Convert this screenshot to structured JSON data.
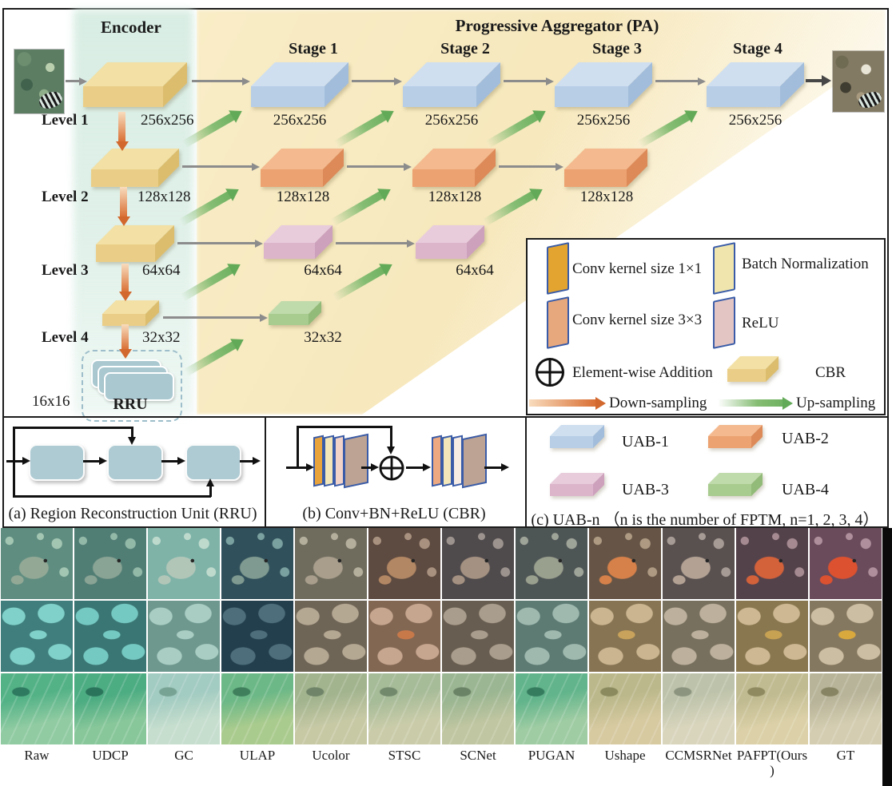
{
  "figure": {
    "encoder_title": "Encoder",
    "pa_title": "Progressive Aggregator (PA)",
    "stage_titles": [
      "Stage 1",
      "Stage 2",
      "Stage 3",
      "Stage 4"
    ],
    "levels": [
      {
        "label": "Level 1",
        "size": "256x256"
      },
      {
        "label": "Level 2",
        "size": "128x128"
      },
      {
        "label": "Level 3",
        "size": "64x64"
      },
      {
        "label": "Level 4",
        "size": "32x32"
      }
    ],
    "rru": {
      "label": "RRU",
      "size": "16x16"
    },
    "pa_rows": [
      {
        "uab": "UAB-1",
        "sizes": [
          "256x256",
          "256x256",
          "256x256",
          "256x256"
        ]
      },
      {
        "uab": "UAB-2",
        "sizes": [
          "128x128",
          "128x128",
          "128x128"
        ]
      },
      {
        "uab": "UAB-3",
        "sizes": [
          "64x64",
          "64x64"
        ]
      },
      {
        "uab": "UAB-4",
        "sizes": [
          "32x32"
        ]
      }
    ]
  },
  "legend": {
    "conv1": "Conv kernel size 1×1",
    "conv3": "Conv kernel size 3×3",
    "bn": "Batch Normalization",
    "relu": "ReLU",
    "add": "Element-wise Addition",
    "cbr": "CBR",
    "down": "Down-sampling",
    "up": "Up-sampling"
  },
  "panels": {
    "a_caption": "(a) Region Reconstruction Unit (RRU)",
    "b_caption": "(b) Conv+BN+ReLU (CBR)",
    "c_caption": "(c) UAB-n （n is the number of FPTM, n=1, 2, 3, 4）",
    "uab_labels": [
      "UAB-1",
      "UAB-2",
      "UAB-3",
      "UAB-4"
    ]
  },
  "colors": {
    "uab1": "#b7cee6",
    "uab2": "#eca271",
    "uab3": "#dcb5cb",
    "uab4": "#a8cb8f",
    "cbr": "#eace88",
    "conv1_plate": "#e3a52f",
    "conv3_plate": "#e7a87d",
    "bn_plate": "#efe5ad",
    "relu_plate": "#e3c6c4",
    "down_arrow": "#d96e33",
    "up_arrow": "#6fb161",
    "flow_arrow": "#8c8c8c",
    "encoder_band": "#d6ece2",
    "pa_band": "#f8ebc3",
    "rru_teal": "#a9c8d0"
  },
  "comparison": {
    "methods": [
      "Raw",
      "UDCP",
      "GC",
      "ULAP",
      "Ucolor",
      "STSC",
      "SCNet",
      "PUGAN",
      "Ushape",
      "CCMSRNet",
      "PAFPT(Ours\n)",
      "GT"
    ],
    "rows": [
      {
        "scene": "fish",
        "cells": [
          [
            "#5f8d80",
            "#a3c6b3",
            "#93a996"
          ],
          [
            "#507d74",
            "#92b8a8",
            "#89a394"
          ],
          [
            "#7fb3a8",
            "#bedacd",
            "#b2c6b8"
          ],
          [
            "#30505b",
            "#7aa09f",
            "#7f9a90"
          ],
          [
            "#6f6c5e",
            "#b4ae9c",
            "#a99e8c"
          ],
          [
            "#5d4a40",
            "#a8917f",
            "#b28764"
          ],
          [
            "#4f4a4c",
            "#9c938e",
            "#a49181"
          ],
          [
            "#4e5555",
            "#9fa499",
            "#99a08e"
          ],
          [
            "#665546",
            "#ae9a83",
            "#d6804a"
          ],
          [
            "#595150",
            "#a79c95",
            "#b3a294"
          ],
          [
            "#54424b",
            "#a58b91",
            "#d3613a"
          ],
          [
            "#694b5b",
            "#ae8f9b",
            "#dc5130"
          ]
        ]
      },
      {
        "scene": "starfish",
        "cells": [
          [
            "#80d1c9",
            "#3f7e7c",
            "#80d1c9"
          ],
          [
            "#75c9c3",
            "#3a7673",
            "#75c9c3"
          ],
          [
            "#a9cdc2",
            "#6e978e",
            "#a9cdc2"
          ],
          [
            "#4e6e7b",
            "#233f4e",
            "#4e6e7b"
          ],
          [
            "#b4a893",
            "#6f6556",
            "#b4a893"
          ],
          [
            "#c7a68f",
            "#826753",
            "#c8794a"
          ],
          [
            "#a99d8d",
            "#675d50",
            "#a99d8d"
          ],
          [
            "#9fb9af",
            "#5d7b73",
            "#9fb9af"
          ],
          [
            "#cbb591",
            "#877452",
            "#c9a35b"
          ],
          [
            "#bdb19d",
            "#78705e",
            "#bdb19d"
          ],
          [
            "#cdb893",
            "#89774f",
            "#c8a253"
          ],
          [
            "#cbbea3",
            "#857860",
            "#d9a93e"
          ]
        ]
      },
      {
        "scene": "seafloor",
        "cells": [
          [
            "#54b287",
            "#90cba2",
            "#2e7a60"
          ],
          [
            "#4cac82",
            "#88c79a",
            "#2a745b"
          ],
          [
            "#a2cbc1",
            "#c6dece",
            "#77a394"
          ],
          [
            "#6cb887",
            "#aacb8e",
            "#3f7f5c"
          ],
          [
            "#a2b48e",
            "#c7c9a5",
            "#6f8468"
          ],
          [
            "#a6bb98",
            "#cacca9",
            "#72896c"
          ],
          [
            "#9bb692",
            "#c0c6a1",
            "#6a8266"
          ],
          [
            "#61b48b",
            "#9fcca3",
            "#357c5f"
          ],
          [
            "#bbb88b",
            "#d7caa1",
            "#8a8a5e"
          ],
          [
            "#bdc3aa",
            "#d9d5bd",
            "#8c9480"
          ],
          [
            "#c1bb91",
            "#dbd0a7",
            "#908a60"
          ],
          [
            "#b8b499",
            "#d4cdb1",
            "#878463"
          ]
        ]
      }
    ]
  }
}
